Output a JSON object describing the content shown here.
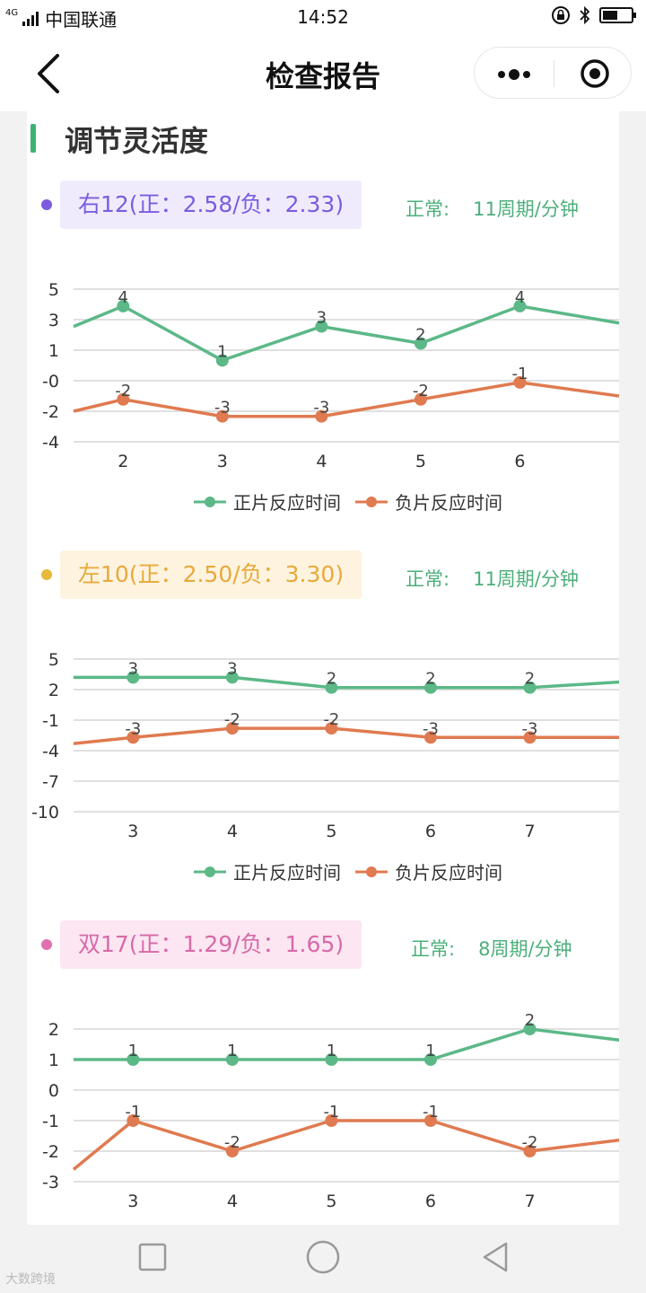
{
  "statusbar": {
    "carrier": "中国联通",
    "network": "4G",
    "time": "14:52"
  },
  "nav": {
    "title": "检查报告"
  },
  "section": {
    "title": "调节灵活度"
  },
  "colors": {
    "positive": "#5cb887",
    "negative": "#e07a50",
    "grid": "#e0e0e0",
    "normal_text": "#4caf7a"
  },
  "legend": {
    "positive": "正片反应时间",
    "negative": "负片反应时间"
  },
  "blocks": [
    {
      "dot_color": "#7b5ce0",
      "label": "右12(正：2.58/负：2.33)",
      "pill_bg": "#f0ebfc",
      "text_color": "#7b5ce0",
      "normal_label": "正常:",
      "normal_value": "11周期/分钟"
    },
    {
      "dot_color": "#e8b83a",
      "label": "左10(正：2.50/负：3.30)",
      "pill_bg": "#fdf3df",
      "text_color": "#e8a93a",
      "normal_label": "正常:",
      "normal_value": "11周期/分钟"
    },
    {
      "dot_color": "#e070b0",
      "label": "双17(正：1.29/负：1.65)",
      "pill_bg": "#fce6f2",
      "text_color": "#d76aa8",
      "normal_label": "正常:",
      "normal_value": "8周期/分钟"
    }
  ],
  "chart_data": [
    {
      "type": "line",
      "y_ticks": [
        "5",
        "3",
        "1",
        "-0",
        "-2",
        "-4"
      ],
      "ylim": [
        -4,
        5
      ],
      "x_visible": [
        2,
        3,
        4,
        5,
        6
      ],
      "x_range": [
        1.5,
        7.0
      ],
      "series": [
        {
          "name": "正片反应时间",
          "x": [
            1.5,
            2,
            3,
            4,
            5,
            6,
            7
          ],
          "values": [
            2.8,
            4,
            0.8,
            2.8,
            1.8,
            4,
            3
          ],
          "labels": [
            "",
            "4",
            "1",
            "3",
            "2",
            "4",
            ""
          ]
        },
        {
          "name": "负片反应时间",
          "x": [
            1.5,
            2,
            3,
            4,
            5,
            6,
            7
          ],
          "values": [
            -2.2,
            -1.5,
            -2.5,
            -2.5,
            -1.5,
            -0.5,
            -1.3
          ],
          "labels": [
            "",
            "-2",
            "-3",
            "-3",
            "-2",
            "-1",
            ""
          ]
        }
      ]
    },
    {
      "type": "line",
      "y_ticks": [
        "5",
        "2",
        "-1",
        "-4",
        "-7",
        "-10"
      ],
      "ylim": [
        -10,
        5
      ],
      "x_visible": [
        3,
        4,
        5,
        6,
        7
      ],
      "x_range": [
        2.4,
        7.9
      ],
      "series": [
        {
          "name": "正片反应时间",
          "x": [
            2.4,
            3,
            4,
            5,
            6,
            7,
            8
          ],
          "values": [
            3.2,
            3.2,
            3.2,
            2.2,
            2.2,
            2.2,
            2.8
          ],
          "labels": [
            "",
            "3",
            "3",
            "2",
            "2",
            "2",
            ""
          ]
        },
        {
          "name": "负片反应时间",
          "x": [
            2.4,
            3,
            4,
            5,
            6,
            7,
            8
          ],
          "values": [
            -3.3,
            -2.7,
            -1.8,
            -1.8,
            -2.7,
            -2.7,
            -2.7
          ],
          "labels": [
            "",
            "-3",
            "-2",
            "-2",
            "-3",
            "-3",
            ""
          ]
        }
      ]
    },
    {
      "type": "line",
      "y_ticks": [
        "2",
        "1",
        "0",
        "-1",
        "-2",
        "-3"
      ],
      "ylim": [
        -3,
        2
      ],
      "x_visible": [
        3,
        4,
        5,
        6,
        7
      ],
      "x_range": [
        2.4,
        7.9
      ],
      "series": [
        {
          "name": "正片反应时间",
          "x": [
            2.4,
            3,
            4,
            5,
            6,
            7,
            8
          ],
          "values": [
            1,
            1,
            1,
            1,
            1,
            2,
            1.6
          ],
          "labels": [
            "",
            "1",
            "1",
            "1",
            "1",
            "2",
            ""
          ]
        },
        {
          "name": "负片反应时间",
          "x": [
            2.4,
            3,
            4,
            5,
            6,
            7,
            8
          ],
          "values": [
            -2.6,
            -1,
            -2,
            -1,
            -1,
            -2,
            -1.6
          ],
          "labels": [
            "",
            "-1",
            "-2",
            "-1",
            "-1",
            "-2",
            ""
          ]
        }
      ]
    }
  ],
  "watermark": "大数跨境"
}
